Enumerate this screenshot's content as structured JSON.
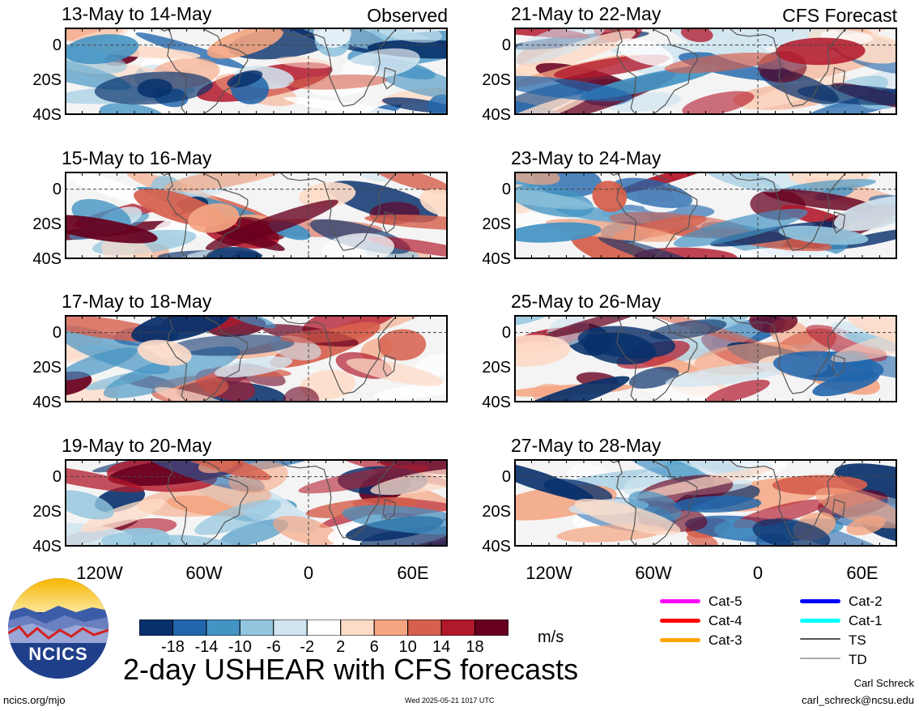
{
  "panels": [
    {
      "title": "13-May to 14-May",
      "tag": "Observed"
    },
    {
      "title": "15-May to 16-May",
      "tag": ""
    },
    {
      "title": "17-May to 18-May",
      "tag": ""
    },
    {
      "title": "19-May to 20-May",
      "tag": ""
    },
    {
      "title": "21-May to 22-May",
      "tag": "CFS Forecast"
    },
    {
      "title": "23-May to 24-May",
      "tag": ""
    },
    {
      "title": "25-May to 26-May",
      "tag": ""
    },
    {
      "title": "27-May to 28-May",
      "tag": ""
    }
  ],
  "lat_labels": [
    "0",
    "20S",
    "40S"
  ],
  "lon_labels": [
    "120W",
    "60W",
    "0",
    "60E"
  ],
  "colorbar": {
    "colors": [
      "#08306b",
      "#2166ac",
      "#4393c3",
      "#92c5de",
      "#d1e5f0",
      "#ffffff",
      "#fddbc7",
      "#f4a582",
      "#d6604d",
      "#b2182b",
      "#67001f"
    ],
    "labels": [
      "-18",
      "-14",
      "-10",
      "-6",
      "-2",
      "2",
      "6",
      "10",
      "14",
      "18"
    ],
    "units": "m/s"
  },
  "legend": [
    {
      "label": "Cat-5",
      "color": "#ff00ff"
    },
    {
      "label": "Cat-4",
      "color": "#ff0000"
    },
    {
      "label": "Cat-3",
      "color": "#ffa500"
    },
    {
      "label": "Cat-2",
      "color": "#0000ff"
    },
    {
      "label": "Cat-1",
      "color": "#00ffff"
    },
    {
      "label": "TS",
      "color": "#555555"
    },
    {
      "label": "TD",
      "color": "#aaaaaa"
    }
  ],
  "main_title": "2-day USHEAR with CFS forecasts",
  "logo_text": "NCICS",
  "footer": {
    "left": "ncics.org/mjo",
    "timestamp": "Wed 2025-05-21 1017 UTC",
    "author": "Carl Schreck",
    "email": "carl_schreck@ncsu.edu"
  }
}
